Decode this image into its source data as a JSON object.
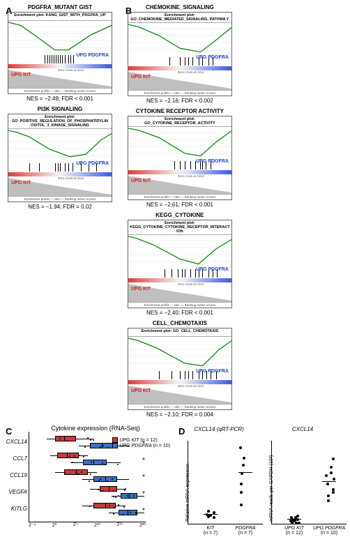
{
  "colors": {
    "line_green": "#0a8a0a",
    "upg_pdgfra": "#1a3fd6",
    "upg_kit": "#d61a1a",
    "box_kit": "#c63a3a",
    "box_pdgfra": "#3a6fc6",
    "heat_red": "#e23b3b",
    "heat_blue": "#3b5be2",
    "heat_mid": "#f0f0f0",
    "grid": "#e0e0e0"
  },
  "panelA": {
    "label": "A",
    "plots": [
      {
        "title": "PDGFRA_MUTANT GIST",
        "header": "Enrichment plot: KANG_GIST_WITH_PDGFRA_UP",
        "caption": "NES = −2.49; FDR < 0.001",
        "curve": [
          [
            0,
            0
          ],
          [
            5,
            -2
          ],
          [
            12,
            -5
          ],
          [
            25,
            -20
          ],
          [
            45,
            -44
          ],
          [
            58,
            -44
          ],
          [
            80,
            -20
          ],
          [
            100,
            -5
          ]
        ],
        "ticks": [
          35,
          38,
          40,
          42,
          44,
          46,
          48,
          50,
          52,
          55,
          58,
          60,
          63
        ],
        "zero_cross": "Zero cross at 2114"
      },
      {
        "title": "PI3K SIGNALING",
        "header": "Enrichment plot: GO_POSITIVE_REGULATION_OF_PHOSPHATIDYLIN OSITOL_3_KINASE_SIGNALING",
        "caption": "NES = −1.94; FDR = 0.02",
        "curve": [
          [
            0,
            0
          ],
          [
            8,
            -3
          ],
          [
            20,
            -10
          ],
          [
            40,
            -30
          ],
          [
            60,
            -42
          ],
          [
            75,
            -38
          ],
          [
            90,
            -15
          ],
          [
            100,
            -5
          ]
        ],
        "ticks": [
          20,
          30,
          45,
          48,
          50,
          55,
          58,
          62,
          70,
          78,
          85
        ],
        "zero_cross": "Zero cross at 2114"
      }
    ]
  },
  "panelB": {
    "label": "B",
    "plots": [
      {
        "title": "CHEMOKINE_SIGNALING",
        "header": "Enrichment plot: GO_CHEMOKINE_MEDIATED_SIGNALING_PATHWA Y",
        "caption": "NES = −2.16; FDR < 0.002",
        "curve": [
          [
            0,
            0
          ],
          [
            10,
            -4
          ],
          [
            30,
            -18
          ],
          [
            50,
            -38
          ],
          [
            70,
            -44
          ],
          [
            85,
            -25
          ],
          [
            100,
            -5
          ]
        ],
        "ticks": [
          40,
          50,
          55,
          58,
          62,
          68,
          72,
          78,
          82
        ]
      },
      {
        "title": "CYTOKINE RECEPTOR ACTIVITY",
        "header": "Enrichment plot: GO_CYTOKINE_RECEPTOR_ACTIVITY",
        "caption": "NES = −2.61; FDR < 0.001",
        "curve": [
          [
            0,
            0
          ],
          [
            10,
            -3
          ],
          [
            30,
            -15
          ],
          [
            55,
            -40
          ],
          [
            70,
            -44
          ],
          [
            85,
            -22
          ],
          [
            100,
            -4
          ]
        ],
        "ticks": [
          45,
          50,
          55,
          60,
          65,
          70,
          72,
          75,
          80
        ]
      },
      {
        "title": "KEGG_CYTOKINE",
        "header": "Enrichment plot: KEGG_CYTOKINE_CYTOKINE_RECEPTOR_INTERACT ION",
        "caption": "NES = −2.40; FDR < 0.001",
        "curve": [
          [
            0,
            0
          ],
          [
            8,
            -3
          ],
          [
            25,
            -14
          ],
          [
            50,
            -36
          ],
          [
            68,
            -44
          ],
          [
            85,
            -20
          ],
          [
            100,
            -5
          ]
        ],
        "ticks": [
          35,
          42,
          48,
          52,
          55,
          60,
          65,
          68,
          72,
          78,
          82,
          86
        ]
      },
      {
        "title": "CELL_CHEMOTAXIS",
        "header": "Enrichment plot: GO_CELL_CHEMOTAXIS",
        "caption": "NES = −2.10; FDR = 0.004",
        "curve": [
          [
            0,
            0
          ],
          [
            10,
            -4
          ],
          [
            28,
            -16
          ],
          [
            55,
            -40
          ],
          [
            72,
            -44
          ],
          [
            88,
            -18
          ],
          [
            100,
            -4
          ]
        ],
        "ticks": [
          30,
          42,
          50,
          55,
          58,
          62,
          68,
          72,
          76,
          80,
          85
        ]
      }
    ],
    "upg_pdgfra_label": "UPG PDGFRA",
    "upg_kit_label": "UPG KIT",
    "footer_text": "Enrichment profile — Hits — Ranking metric scores",
    "xaxis_label": "Rank in Ordered Dataset"
  },
  "panelC": {
    "label": "C",
    "title": "Cytokine expression (RNA-Seq)",
    "legend": [
      {
        "label": "UPG KIT (n = 12)",
        "color": "#c63a3a"
      },
      {
        "label": "UPG PDGFRA (n = 10)",
        "color": "#3a6fc6"
      }
    ],
    "xticks": [
      "2⁻⁵",
      "2⁰",
      "2⁵",
      "2¹⁰",
      "2¹⁵",
      "2²⁰"
    ],
    "genes": [
      {
        "name": "CXCL14",
        "kit": {
          "q1": 22,
          "med": 30,
          "q3": 40,
          "lo": 15,
          "hi": 55
        },
        "pdg": {
          "q1": 52,
          "med": 62,
          "q3": 72,
          "lo": 42,
          "hi": 85
        },
        "star": true
      },
      {
        "name": "CCL7",
        "kit": {
          "q1": 24,
          "med": 32,
          "q3": 42,
          "lo": 18,
          "hi": 50
        },
        "pdg": {
          "q1": 46,
          "med": 55,
          "q3": 66,
          "lo": 35,
          "hi": 78
        },
        "star": true
      },
      {
        "name": "CCL19",
        "kit": {
          "q1": 30,
          "med": 40,
          "q3": 50,
          "lo": 22,
          "hi": 58
        },
        "pdg": {
          "q1": 55,
          "med": 65,
          "q3": 75,
          "lo": 45,
          "hi": 85
        },
        "star": true
      },
      {
        "name": "VEGFA",
        "kit": {
          "q1": 60,
          "med": 68,
          "q3": 75,
          "lo": 52,
          "hi": 82
        },
        "pdg": {
          "q1": 78,
          "med": 85,
          "q3": 92,
          "lo": 70,
          "hi": 98
        },
        "star": true
      },
      {
        "name": "KITLG",
        "kit": {
          "q1": 55,
          "med": 65,
          "q3": 74,
          "lo": 45,
          "hi": 82
        },
        "pdg": {
          "q1": 76,
          "med": 84,
          "q3": 92,
          "lo": 68,
          "hi": 98
        },
        "star": true
      }
    ]
  },
  "panelD": {
    "label": "D",
    "left": {
      "title": "CXCL14 (qRT-PCR)",
      "ylabel": "Relative mRNA expression",
      "groups": [
        {
          "label": "KIT",
          "n": "(n = 7)",
          "pts": [
            1.0,
            1.1,
            0.9,
            1.3,
            1.4,
            0.8,
            1.0
          ],
          "median": 1.0
        },
        {
          "label": "PDGFRA",
          "n": "(n = 7)",
          "pts": [
            3.2,
            2.0,
            5.0,
            6.5,
            4.0,
            7.5,
            5.8
          ],
          "median": 5.0
        }
      ],
      "ymax": 8
    },
    "right": {
      "title": "CXCL14",
      "ylabel": "mRNA reads per GAPDH (10³)",
      "groups": [
        {
          "label": "UPG KIT",
          "n": "(n = 12)",
          "pts": [
            0.3,
            0.2,
            0.5,
            0.4,
            0.3,
            0.2,
            0.6,
            0.4,
            0.3,
            0.5,
            0.2,
            0.4
          ],
          "median": 0.35
        },
        {
          "label": "UPG PDGFRA",
          "n": "(n = 10)",
          "pts": [
            2.2,
            1.8,
            3.0,
            2.5,
            4.0,
            3.2,
            2.8,
            3.5,
            1.5,
            2.0
          ],
          "median": 2.6
        }
      ],
      "ymax": 5
    }
  }
}
